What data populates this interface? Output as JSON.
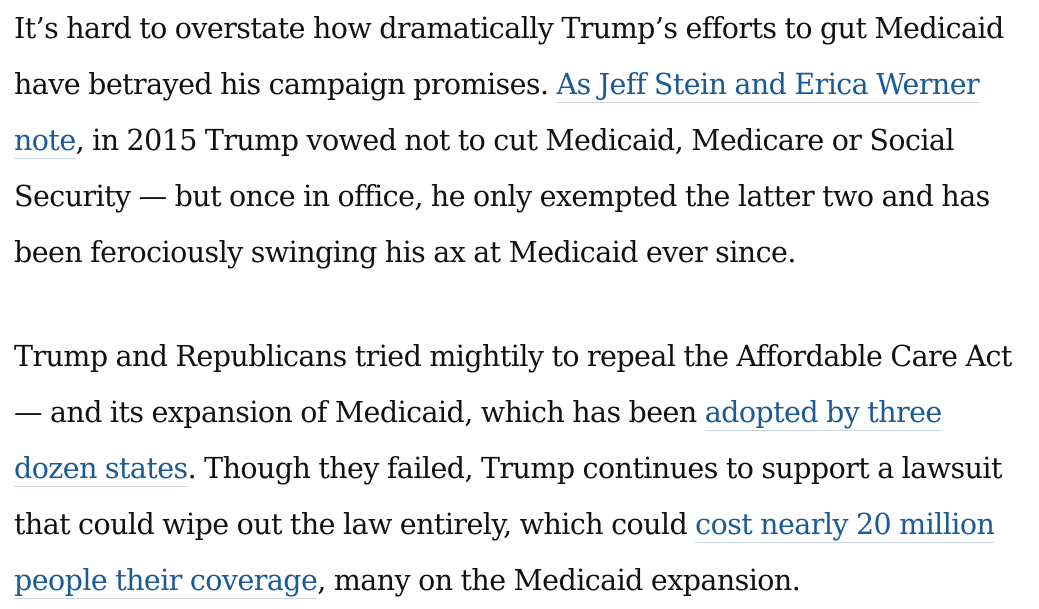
{
  "article": {
    "paragraphs": [
      {
        "segments": [
          {
            "type": "text",
            "text": "It’s hard to overstate how dramatically Trump’s efforts to gut Medicaid have betrayed his campaign promises. "
          },
          {
            "type": "link",
            "text": "As Jeff Stein and Erica Werner note"
          },
          {
            "type": "text",
            "text": ", in 2015 Trump vowed not to cut Medicaid, Medicare or Social Security — but once in office, he only exempted the latter two and has been ferociously swinging his ax at Medicaid ever since."
          }
        ]
      },
      {
        "segments": [
          {
            "type": "text",
            "text": "Trump and Republicans tried mightily to repeal the Affordable Care Act — and its expansion of Medicaid, which has been "
          },
          {
            "type": "link",
            "text": "adopted by three dozen states"
          },
          {
            "type": "text",
            "text": ". Though they failed, Trump continues to support a lawsuit that could wipe out the law entirely, which could "
          },
          {
            "type": "link",
            "text": "cost nearly 20 million people their coverage"
          },
          {
            "type": "text",
            "text": ", many on the Medicaid expansion."
          }
        ]
      }
    ]
  },
  "colors": {
    "text": "#111111",
    "link": "#1a5a96",
    "link_underline": "#c9d6e2",
    "background": "#ffffff"
  }
}
